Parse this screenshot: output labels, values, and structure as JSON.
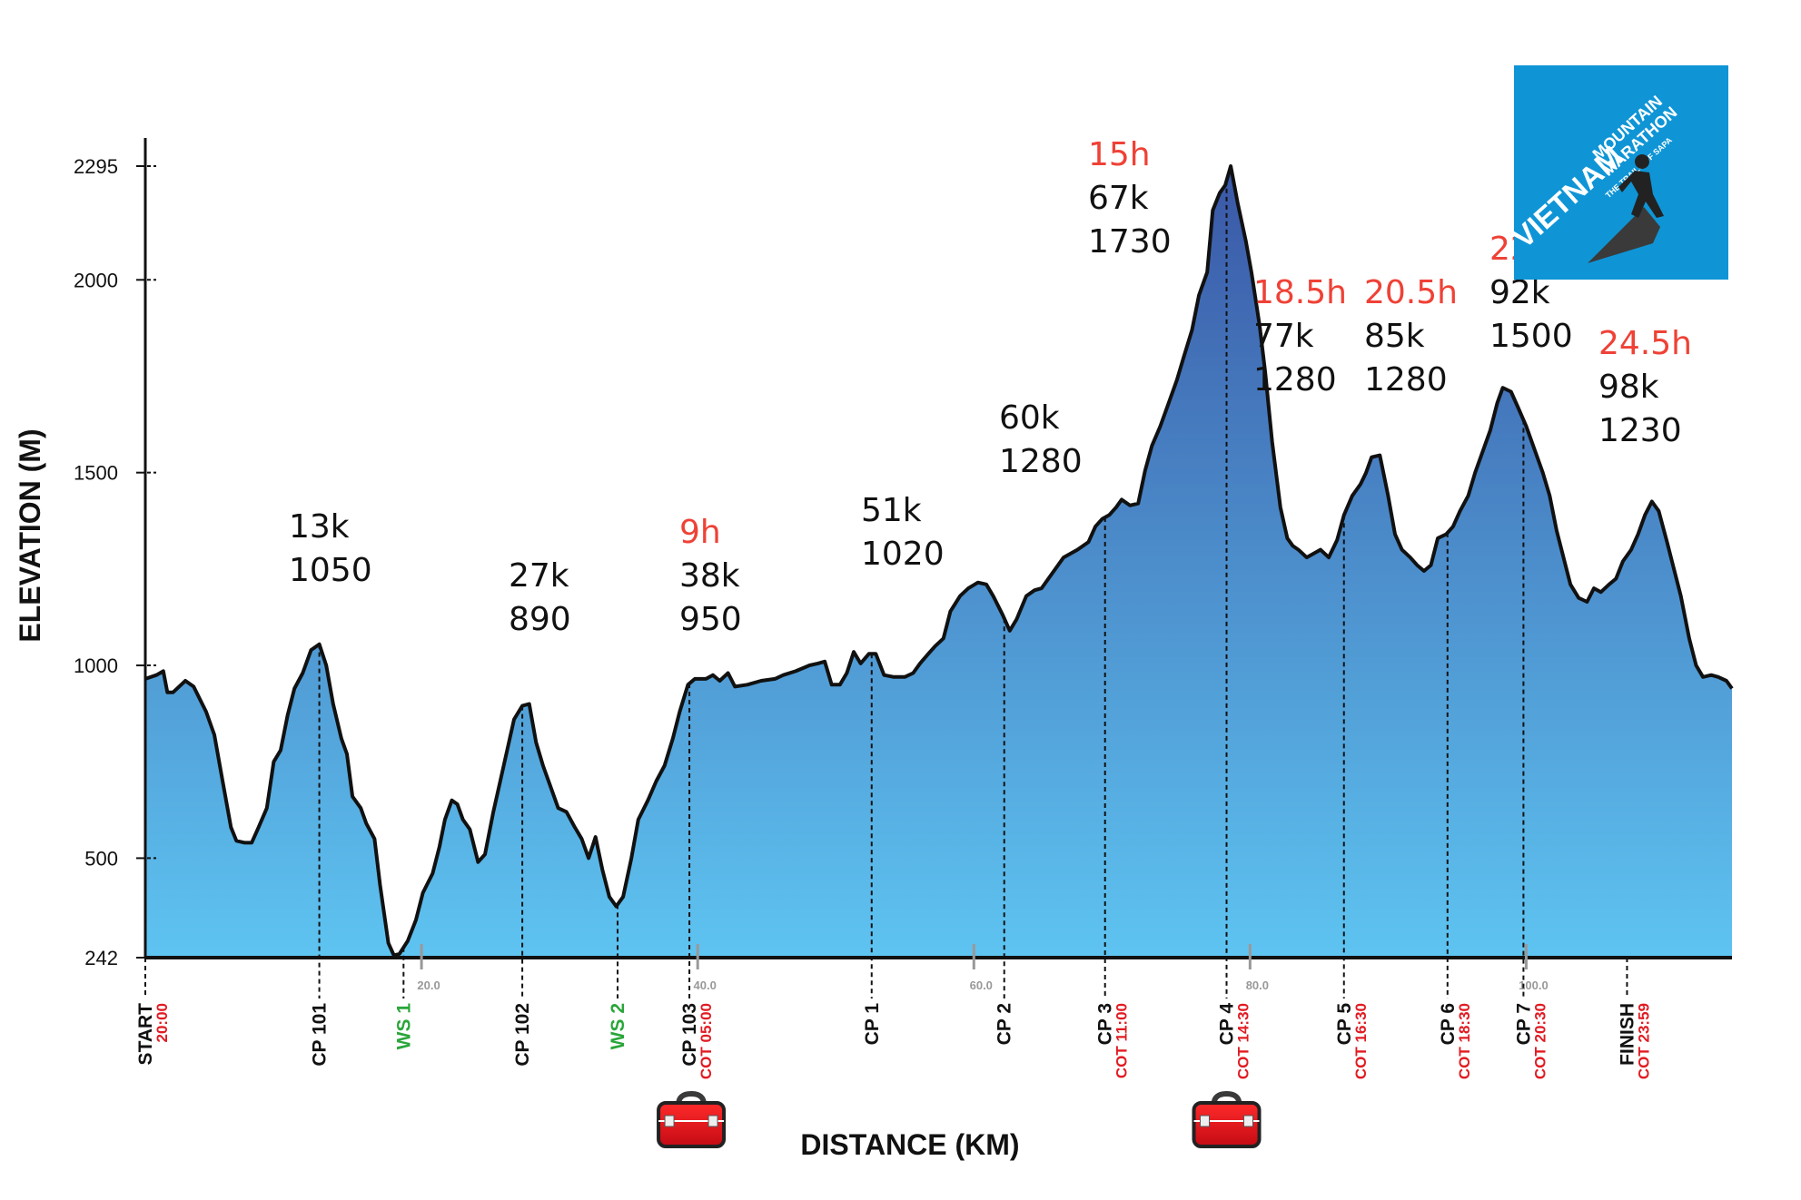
{
  "chart_data": {
    "type": "area",
    "xlabel": "DISTANCE (KM)",
    "ylabel": "ELEVATION (M)",
    "xlim": [
      0,
      107
    ],
    "ylim": [
      242,
      2295
    ],
    "yticks": [
      242,
      500,
      1000,
      1500,
      2000,
      2295
    ],
    "xticks": [
      {
        "value": 20,
        "label": "20.0"
      },
      {
        "value": 40,
        "label": "40.0"
      },
      {
        "value": 60,
        "label": "60.0"
      },
      {
        "value": 80,
        "label": "80.0"
      },
      {
        "value": 100,
        "label": "100.0"
      }
    ],
    "profile": [
      [
        0,
        965
      ],
      [
        0.8,
        975
      ],
      [
        1.3,
        985
      ],
      [
        1.6,
        930
      ],
      [
        2.0,
        930
      ],
      [
        2.6,
        950
      ],
      [
        2.9,
        960
      ],
      [
        3.5,
        945
      ],
      [
        4.4,
        880
      ],
      [
        5.0,
        820
      ],
      [
        5.6,
        700
      ],
      [
        6.2,
        580
      ],
      [
        6.6,
        545
      ],
      [
        7.2,
        540
      ],
      [
        7.7,
        540
      ],
      [
        8.2,
        580
      ],
      [
        8.8,
        630
      ],
      [
        9.3,
        750
      ],
      [
        9.8,
        780
      ],
      [
        10.3,
        870
      ],
      [
        10.8,
        940
      ],
      [
        11.4,
        980
      ],
      [
        12.0,
        1040
      ],
      [
        12.6,
        1055
      ],
      [
        13.1,
        1000
      ],
      [
        13.6,
        900
      ],
      [
        14.2,
        810
      ],
      [
        14.6,
        770
      ],
      [
        15.0,
        660
      ],
      [
        15.6,
        630
      ],
      [
        16.0,
        590
      ],
      [
        16.6,
        550
      ],
      [
        17.0,
        430
      ],
      [
        17.6,
        280
      ],
      [
        18.0,
        248
      ],
      [
        18.4,
        252
      ],
      [
        19.0,
        285
      ],
      [
        19.6,
        340
      ],
      [
        20.1,
        410
      ],
      [
        20.8,
        460
      ],
      [
        21.3,
        530
      ],
      [
        21.7,
        600
      ],
      [
        22.2,
        650
      ],
      [
        22.6,
        640
      ],
      [
        23.0,
        600
      ],
      [
        23.5,
        575
      ],
      [
        24.1,
        490
      ],
      [
        24.6,
        510
      ],
      [
        25.2,
        620
      ],
      [
        25.7,
        700
      ],
      [
        26.2,
        780
      ],
      [
        26.7,
        860
      ],
      [
        27.3,
        895
      ],
      [
        27.8,
        900
      ],
      [
        28.3,
        800
      ],
      [
        28.8,
        740
      ],
      [
        29.3,
        690
      ],
      [
        29.9,
        630
      ],
      [
        30.5,
        620
      ],
      [
        31.1,
        580
      ],
      [
        31.6,
        550
      ],
      [
        32.1,
        500
      ],
      [
        32.6,
        555
      ],
      [
        33.1,
        470
      ],
      [
        33.6,
        400
      ],
      [
        34.1,
        375
      ],
      [
        34.6,
        400
      ],
      [
        35.2,
        500
      ],
      [
        35.7,
        600
      ],
      [
        36.4,
        650
      ],
      [
        37.0,
        700
      ],
      [
        37.6,
        740
      ],
      [
        38.2,
        810
      ],
      [
        38.7,
        880
      ],
      [
        39.3,
        950
      ],
      [
        39.8,
        965
      ],
      [
        40.6,
        965
      ],
      [
        41.1,
        975
      ],
      [
        41.6,
        960
      ],
      [
        42.2,
        980
      ],
      [
        42.7,
        945
      ],
      [
        43.6,
        950
      ],
      [
        44.6,
        960
      ],
      [
        45.6,
        965
      ],
      [
        46.2,
        975
      ],
      [
        47.1,
        985
      ],
      [
        48.1,
        1000
      ],
      [
        48.7,
        1005
      ],
      [
        49.2,
        1010
      ],
      [
        49.7,
        950
      ],
      [
        50.3,
        950
      ],
      [
        50.8,
        980
      ],
      [
        51.3,
        1035
      ],
      [
        51.8,
        1005
      ],
      [
        52.4,
        1030
      ],
      [
        52.9,
        1030
      ],
      [
        53.5,
        975
      ],
      [
        54.2,
        970
      ],
      [
        55.0,
        970
      ],
      [
        55.6,
        980
      ],
      [
        56.1,
        1005
      ],
      [
        56.7,
        1030
      ],
      [
        57.2,
        1050
      ],
      [
        57.8,
        1070
      ],
      [
        58.3,
        1140
      ],
      [
        59.0,
        1180
      ],
      [
        59.6,
        1200
      ],
      [
        60.3,
        1215
      ],
      [
        60.9,
        1210
      ],
      [
        61.4,
        1180
      ],
      [
        62.1,
        1130
      ],
      [
        62.6,
        1090
      ],
      [
        63.1,
        1120
      ],
      [
        63.8,
        1180
      ],
      [
        64.4,
        1195
      ],
      [
        64.9,
        1200
      ],
      [
        65.7,
        1240
      ],
      [
        66.5,
        1280
      ],
      [
        67.5,
        1300
      ],
      [
        68.3,
        1320
      ],
      [
        68.8,
        1360
      ],
      [
        69.3,
        1380
      ],
      [
        69.8,
        1390
      ],
      [
        70.3,
        1410
      ],
      [
        70.7,
        1430
      ],
      [
        71.3,
        1415
      ],
      [
        71.9,
        1420
      ],
      [
        72.4,
        1505
      ],
      [
        72.9,
        1570
      ],
      [
        73.5,
        1620
      ],
      [
        74.1,
        1680
      ],
      [
        74.7,
        1740
      ],
      [
        75.2,
        1800
      ],
      [
        75.8,
        1870
      ],
      [
        76.3,
        1960
      ],
      [
        76.9,
        2020
      ],
      [
        77.3,
        2180
      ],
      [
        77.8,
        2225
      ],
      [
        78.2,
        2245
      ],
      [
        78.6,
        2295
      ],
      [
        79.1,
        2200
      ],
      [
        79.7,
        2100
      ],
      [
        80.1,
        2020
      ],
      [
        80.7,
        1880
      ],
      [
        81.1,
        1760
      ],
      [
        81.6,
        1580
      ],
      [
        82.2,
        1410
      ],
      [
        82.7,
        1330
      ],
      [
        83.1,
        1310
      ],
      [
        83.5,
        1300
      ],
      [
        84.1,
        1280
      ],
      [
        84.6,
        1290
      ],
      [
        85.1,
        1300
      ],
      [
        85.7,
        1280
      ],
      [
        86.3,
        1325
      ],
      [
        86.8,
        1390
      ],
      [
        87.4,
        1440
      ],
      [
        88.0,
        1470
      ],
      [
        88.4,
        1500
      ],
      [
        88.8,
        1540
      ],
      [
        89.4,
        1545
      ],
      [
        90.0,
        1440
      ],
      [
        90.5,
        1340
      ],
      [
        91.0,
        1300
      ],
      [
        91.6,
        1280
      ],
      [
        92.1,
        1260
      ],
      [
        92.6,
        1245
      ],
      [
        93.1,
        1260
      ],
      [
        93.6,
        1330
      ],
      [
        94.2,
        1340
      ],
      [
        94.7,
        1360
      ],
      [
        95.2,
        1400
      ],
      [
        95.8,
        1440
      ],
      [
        96.3,
        1500
      ],
      [
        96.8,
        1550
      ],
      [
        97.4,
        1610
      ],
      [
        97.9,
        1680
      ],
      [
        98.3,
        1720
      ],
      [
        98.9,
        1710
      ],
      [
        99.4,
        1670
      ],
      [
        100.0,
        1620
      ],
      [
        100.6,
        1560
      ],
      [
        101.2,
        1500
      ],
      [
        101.7,
        1440
      ],
      [
        102.2,
        1350
      ],
      [
        102.7,
        1280
      ],
      [
        103.2,
        1210
      ],
      [
        103.8,
        1175
      ],
      [
        104.4,
        1165
      ],
      [
        104.9,
        1200
      ],
      [
        105.4,
        1190
      ],
      [
        106.0,
        1210
      ],
      [
        106.5,
        1225
      ],
      [
        107.0,
        1270
      ],
      [
        107.6,
        1300
      ],
      [
        108.1,
        1340
      ],
      [
        108.6,
        1390
      ],
      [
        109.1,
        1425
      ],
      [
        109.6,
        1400
      ],
      [
        110.2,
        1320
      ],
      [
        110.7,
        1250
      ],
      [
        111.2,
        1180
      ],
      [
        111.8,
        1070
      ],
      [
        112.3,
        1000
      ],
      [
        112.8,
        970
      ],
      [
        113.4,
        975
      ],
      [
        113.9,
        970
      ],
      [
        114.5,
        960
      ],
      [
        114.9,
        940
      ]
    ],
    "x_axis_max_km": 114.9,
    "checkpoints": [
      {
        "label": "START",
        "x": 0,
        "cot": "20:00",
        "color": "black"
      },
      {
        "label": "CP 101",
        "x": 12.6,
        "cot": "",
        "color": "black"
      },
      {
        "label": "WS 1",
        "x": 18.7,
        "cot": "",
        "color": "green"
      },
      {
        "label": "CP 102",
        "x": 27.3,
        "cot": "",
        "color": "black"
      },
      {
        "label": "WS 2",
        "x": 34.2,
        "cot": "",
        "color": "green"
      },
      {
        "label": "CP 103",
        "x": 39.4,
        "cot": "COT 05:00",
        "color": "black"
      },
      {
        "label": "CP 1",
        "x": 52.6,
        "cot": "",
        "color": "black"
      },
      {
        "label": "CP 2",
        "x": 62.2,
        "cot": "",
        "color": "black"
      },
      {
        "label": "CP 3",
        "x": 69.5,
        "cot": "COT 11:00",
        "color": "black"
      },
      {
        "label": "CP 4",
        "x": 78.3,
        "cot": "COT 14:30",
        "color": "black"
      },
      {
        "label": "CP 5",
        "x": 86.8,
        "cot": "COT 16:30",
        "color": "black"
      },
      {
        "label": "CP 6",
        "x": 94.3,
        "cot": "COT 18:30",
        "color": "black"
      },
      {
        "label": "CP 7",
        "x": 99.8,
        "cot": "COT 20:30",
        "color": "black"
      },
      {
        "label": "FINISH",
        "x": 107.3,
        "cot": "COT 23:59",
        "color": "black"
      }
    ],
    "annotations": [
      {
        "time": "",
        "km": "13k",
        "elev": "1050",
        "x": 12.6
      },
      {
        "time": "",
        "km": "27k",
        "elev": "890",
        "x": 27.3
      },
      {
        "time": "9h",
        "km": "38k",
        "elev": "950",
        "x": 39.4
      },
      {
        "time": "",
        "km": "51k",
        "elev": "1020",
        "x": 52.6
      },
      {
        "time": "",
        "km": "60k",
        "elev": "1280",
        "x": 62.2
      },
      {
        "time": "15h",
        "km": "67k",
        "elev": "1730",
        "x": 69.5
      },
      {
        "time": "18.5h",
        "km": "77k",
        "elev": "1280",
        "x": 78.3
      },
      {
        "time": "20.5h",
        "km": "85k",
        "elev": "1280",
        "x": 86.8
      },
      {
        "time": "22.5h",
        "km": "92k",
        "elev": "1500",
        "x": 94.3
      },
      {
        "time": "24.5h",
        "km": "98k",
        "elev": "1230",
        "x": 99.8
      }
    ],
    "medical_kits_at_km": [
      39.4,
      78.3
    ],
    "colors": {
      "area_top": "#3b5aa9",
      "area_bottom": "#5bc3f0",
      "outline": "#111111",
      "time": "#ef4136",
      "water": "#2aa63a",
      "cot": "#e11b22",
      "logo_bg": "#0f95d6"
    }
  },
  "logo": {
    "line1": "VIETNAM",
    "line2": "MOUNTAIN",
    "line3": "MARATHON",
    "tagline": "THE TRAILS OF SAPA"
  }
}
